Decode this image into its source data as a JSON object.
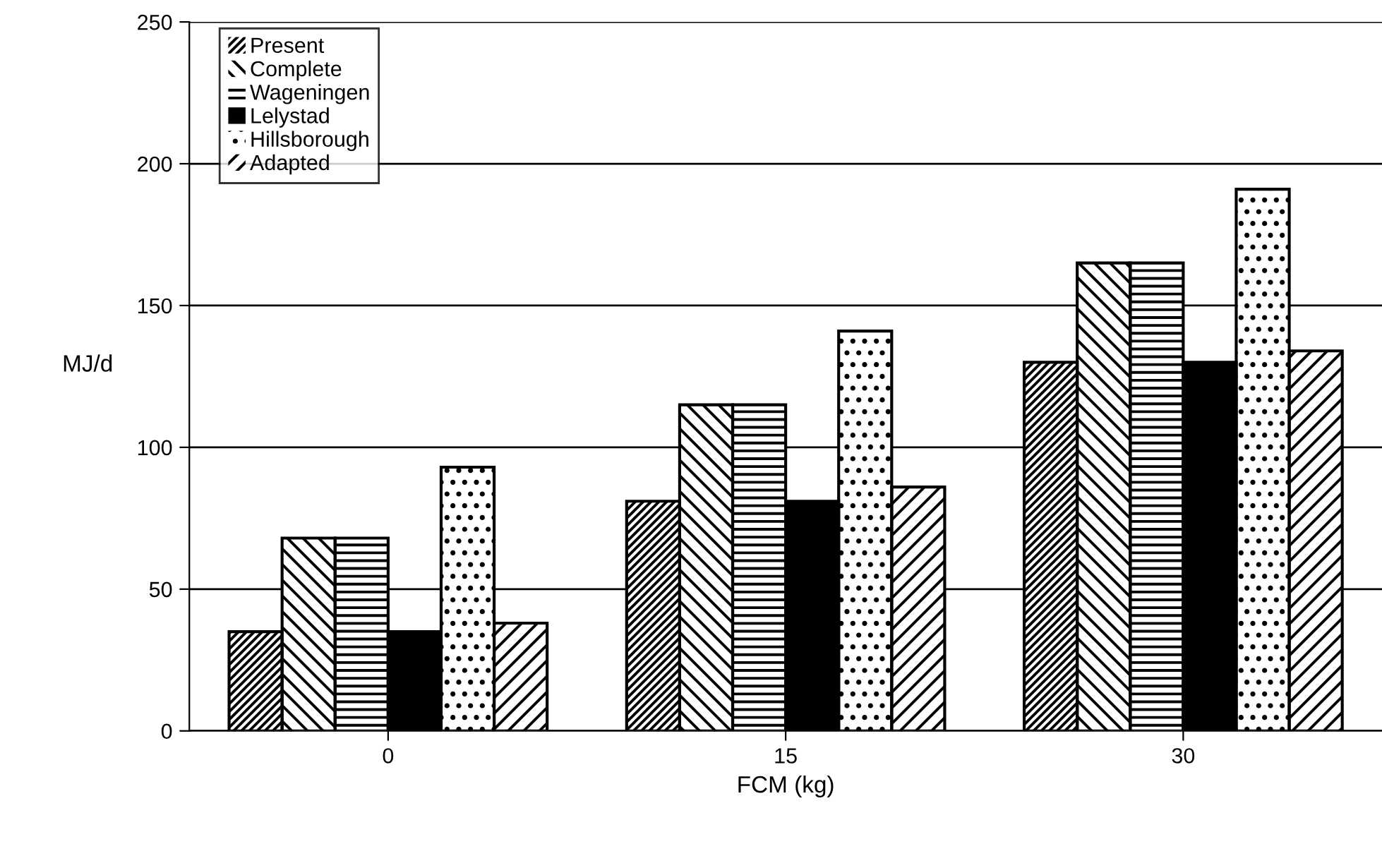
{
  "chart_data": {
    "type": "bar",
    "xlabel": "FCM (kg)",
    "ylabel": "MJ/d",
    "categories": [
      "0",
      "15",
      "30"
    ],
    "series": [
      {
        "name": "Present",
        "color": "#ffffff",
        "values": [
          35,
          81,
          130
        ]
      },
      {
        "name": "Complete",
        "color": "#ffffff",
        "values": [
          68,
          115,
          165
        ]
      },
      {
        "name": "Wageningen",
        "color": "#ffffff",
        "values": [
          68,
          115,
          165
        ]
      },
      {
        "name": "Lelystad",
        "color": "#000000",
        "values": [
          35,
          81,
          130
        ]
      },
      {
        "name": "Hillsborough",
        "color": "#ffffff",
        "values": [
          93,
          141,
          191
        ]
      },
      {
        "name": "Adapted",
        "color": "#ffffff",
        "values": [
          38,
          86,
          134
        ]
      }
    ],
    "ylim": [
      0,
      250
    ],
    "yticks": [
      0,
      50,
      100,
      150,
      200,
      250
    ],
    "grid": "y",
    "legend": "top left"
  }
}
